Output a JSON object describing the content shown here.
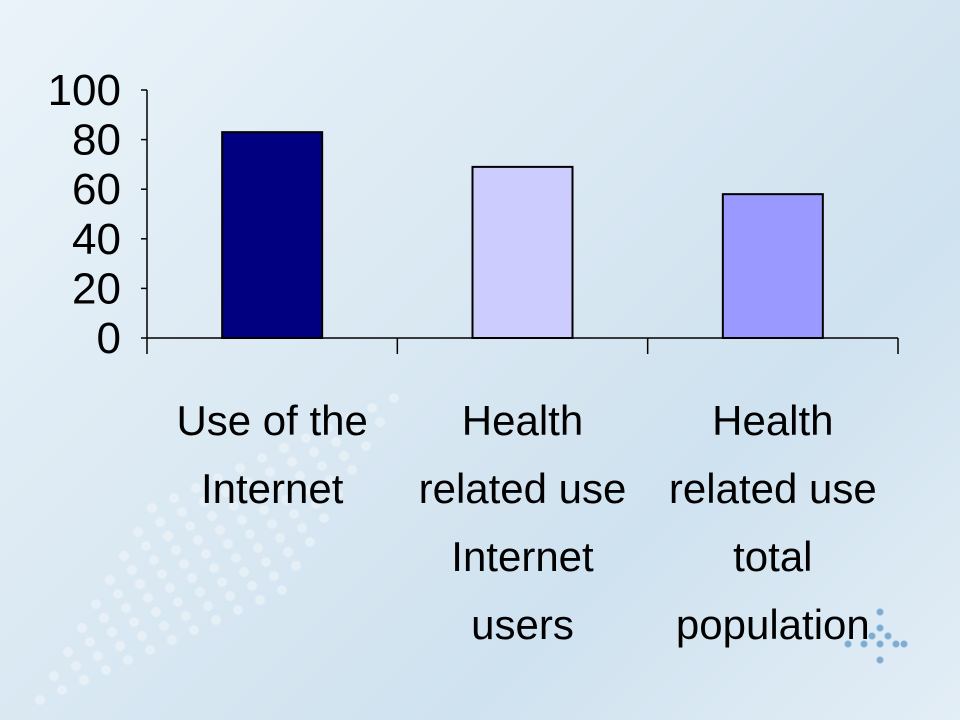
{
  "chart_data": {
    "type": "bar",
    "categories": [
      [
        "Use of the",
        "Internet"
      ],
      [
        "Health",
        "related use",
        "Internet",
        "users"
      ],
      [
        "Health",
        "related use",
        "total",
        "population"
      ]
    ],
    "values": [
      83,
      69,
      58
    ],
    "ylim": [
      0,
      100
    ],
    "yticks": [
      0,
      20,
      40,
      60,
      80,
      100
    ],
    "bar_colors": [
      "#000080",
      "#ccccff",
      "#9999ff"
    ],
    "grid": false,
    "legend": "none"
  }
}
